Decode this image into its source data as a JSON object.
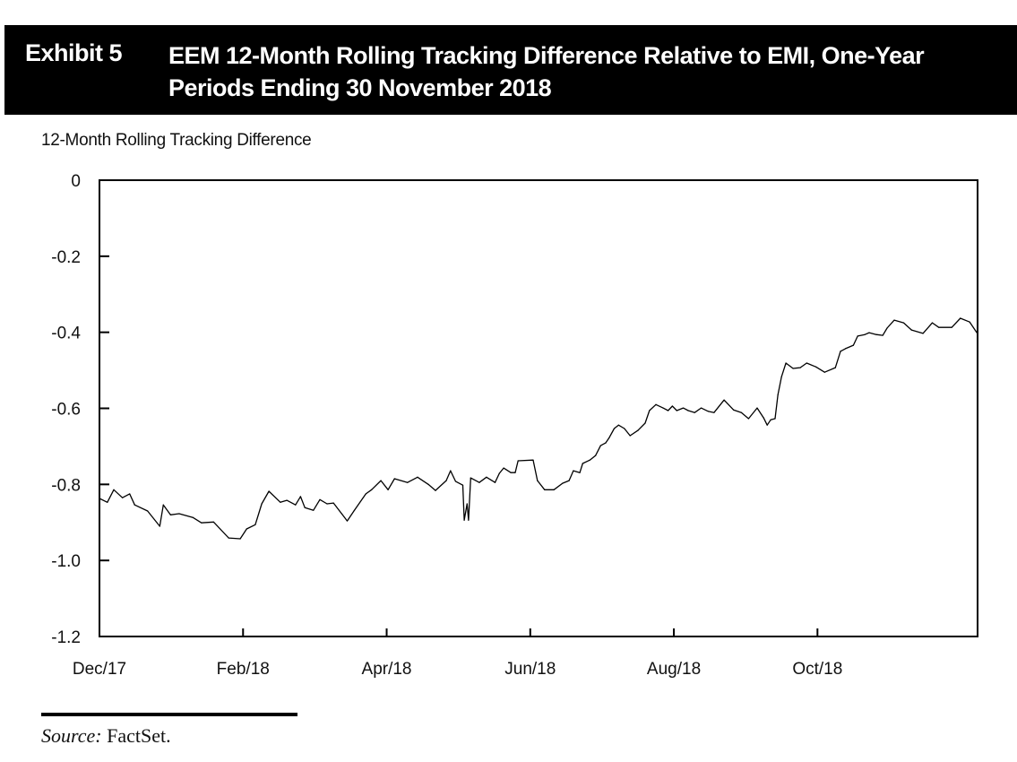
{
  "header": {
    "exhibit_label": "Exhibit 5",
    "title": "EEM 12-Month Rolling Tracking Difference Relative to EMI, One-Year Periods Ending 30 November 2018"
  },
  "footer": {
    "source_label": "Source:",
    "source_text": "FactSet."
  },
  "chart_data": {
    "type": "line",
    "title": "EEM 12-Month Rolling Tracking Difference Relative to EMI, One-Year Periods Ending 30 November 2018",
    "xlabel": "",
    "ylabel": "12-Month Rolling Tracking Difference",
    "ylim": [
      -1.2,
      0
    ],
    "yticks": [
      0,
      -0.2,
      -0.4,
      -0.6,
      -0.8,
      -1.0,
      -1.2
    ],
    "ytick_labels": [
      "0",
      "-0.2",
      "-0.4",
      "-0.6",
      "-0.8",
      "-1.0",
      "-1.2"
    ],
    "x_unit": "months since 1 Dec 2017",
    "xlim": [
      0,
      12.23
    ],
    "xticks": [
      0,
      2,
      4,
      6,
      8,
      10
    ],
    "xtick_labels": [
      "Dec/17",
      "Feb/18",
      "Apr/18",
      "Jun/18",
      "Aug/18",
      "Oct/18"
    ],
    "grid": false,
    "legend": null,
    "series": [
      {
        "name": "EEM 12-Month Rolling Tracking Difference",
        "color": "#000000",
        "points": [
          [
            0.0,
            -0.837
          ],
          [
            0.11,
            -0.847
          ],
          [
            0.2,
            -0.814
          ],
          [
            0.32,
            -0.835
          ],
          [
            0.42,
            -0.825
          ],
          [
            0.49,
            -0.854
          ],
          [
            0.67,
            -0.87
          ],
          [
            0.84,
            -0.91
          ],
          [
            0.89,
            -0.854
          ],
          [
            0.99,
            -0.88
          ],
          [
            1.11,
            -0.877
          ],
          [
            1.3,
            -0.887
          ],
          [
            1.42,
            -0.901
          ],
          [
            1.59,
            -0.899
          ],
          [
            1.8,
            -0.941
          ],
          [
            1.96,
            -0.943
          ],
          [
            2.05,
            -0.917
          ],
          [
            2.17,
            -0.906
          ],
          [
            2.26,
            -0.851
          ],
          [
            2.36,
            -0.818
          ],
          [
            2.52,
            -0.847
          ],
          [
            2.61,
            -0.842
          ],
          [
            2.73,
            -0.854
          ],
          [
            2.8,
            -0.832
          ],
          [
            2.86,
            -0.861
          ],
          [
            2.98,
            -0.868
          ],
          [
            3.07,
            -0.84
          ],
          [
            3.17,
            -0.851
          ],
          [
            3.26,
            -0.849
          ],
          [
            3.45,
            -0.896
          ],
          [
            3.55,
            -0.868
          ],
          [
            3.71,
            -0.825
          ],
          [
            3.79,
            -0.814
          ],
          [
            3.92,
            -0.79
          ],
          [
            4.02,
            -0.814
          ],
          [
            4.11,
            -0.785
          ],
          [
            4.29,
            -0.795
          ],
          [
            4.43,
            -0.781
          ],
          [
            4.58,
            -0.8
          ],
          [
            4.68,
            -0.816
          ],
          [
            4.83,
            -0.79
          ],
          [
            4.89,
            -0.764
          ],
          [
            4.96,
            -0.792
          ],
          [
            5.06,
            -0.802
          ],
          [
            5.08,
            -0.894
          ],
          [
            5.12,
            -0.851
          ],
          [
            5.14,
            -0.894
          ],
          [
            5.17,
            -0.783
          ],
          [
            5.29,
            -0.795
          ],
          [
            5.39,
            -0.781
          ],
          [
            5.51,
            -0.795
          ],
          [
            5.57,
            -0.771
          ],
          [
            5.63,
            -0.757
          ],
          [
            5.73,
            -0.769
          ],
          [
            5.79,
            -0.769
          ],
          [
            5.83,
            -0.738
          ],
          [
            6.04,
            -0.736
          ],
          [
            6.1,
            -0.79
          ],
          [
            6.2,
            -0.814
          ],
          [
            6.33,
            -0.814
          ],
          [
            6.45,
            -0.797
          ],
          [
            6.54,
            -0.79
          ],
          [
            6.6,
            -0.764
          ],
          [
            6.69,
            -0.769
          ],
          [
            6.73,
            -0.745
          ],
          [
            6.83,
            -0.736
          ],
          [
            6.91,
            -0.724
          ],
          [
            6.98,
            -0.698
          ],
          [
            7.05,
            -0.691
          ],
          [
            7.1,
            -0.677
          ],
          [
            7.17,
            -0.653
          ],
          [
            7.23,
            -0.644
          ],
          [
            7.31,
            -0.653
          ],
          [
            7.39,
            -0.672
          ],
          [
            7.5,
            -0.658
          ],
          [
            7.6,
            -0.639
          ],
          [
            7.66,
            -0.606
          ],
          [
            7.75,
            -0.59
          ],
          [
            7.85,
            -0.599
          ],
          [
            7.92,
            -0.606
          ],
          [
            7.98,
            -0.594
          ],
          [
            8.04,
            -0.606
          ],
          [
            8.13,
            -0.599
          ],
          [
            8.2,
            -0.606
          ],
          [
            8.29,
            -0.611
          ],
          [
            8.38,
            -0.599
          ],
          [
            8.48,
            -0.608
          ],
          [
            8.56,
            -0.611
          ],
          [
            8.7,
            -0.578
          ],
          [
            8.83,
            -0.604
          ],
          [
            8.94,
            -0.611
          ],
          [
            9.04,
            -0.627
          ],
          [
            9.16,
            -0.599
          ],
          [
            9.25,
            -0.625
          ],
          [
            9.3,
            -0.644
          ],
          [
            9.35,
            -0.63
          ],
          [
            9.41,
            -0.627
          ],
          [
            9.45,
            -0.564
          ],
          [
            9.5,
            -0.517
          ],
          [
            9.56,
            -0.481
          ],
          [
            9.66,
            -0.495
          ],
          [
            9.76,
            -0.493
          ],
          [
            9.85,
            -0.481
          ],
          [
            9.98,
            -0.491
          ],
          [
            10.1,
            -0.505
          ],
          [
            10.25,
            -0.493
          ],
          [
            10.32,
            -0.45
          ],
          [
            10.39,
            -0.443
          ],
          [
            10.5,
            -0.434
          ],
          [
            10.56,
            -0.41
          ],
          [
            10.66,
            -0.406
          ],
          [
            10.72,
            -0.401
          ],
          [
            10.82,
            -0.406
          ],
          [
            10.91,
            -0.408
          ],
          [
            10.97,
            -0.389
          ],
          [
            11.07,
            -0.368
          ],
          [
            11.2,
            -0.375
          ],
          [
            11.31,
            -0.394
          ],
          [
            11.47,
            -0.403
          ],
          [
            11.6,
            -0.375
          ],
          [
            11.69,
            -0.387
          ],
          [
            11.87,
            -0.387
          ],
          [
            11.99,
            -0.363
          ],
          [
            12.12,
            -0.373
          ],
          [
            12.22,
            -0.401
          ]
        ]
      }
    ]
  }
}
